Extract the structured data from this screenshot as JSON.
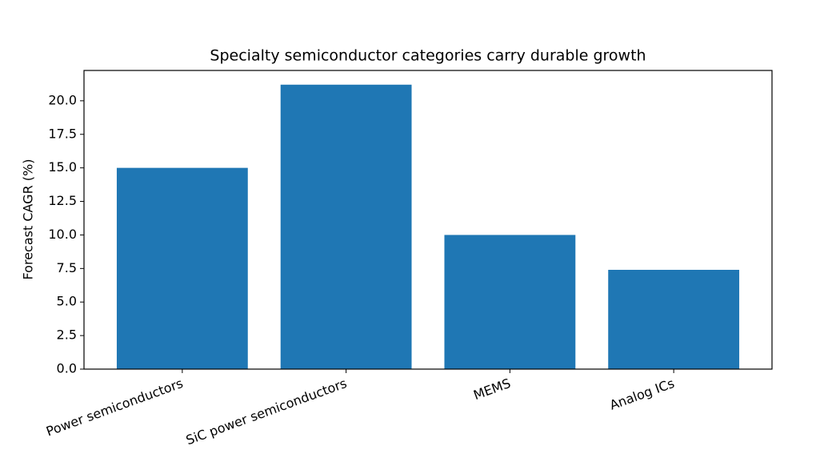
{
  "chart_data": {
    "type": "bar",
    "title": "Specialty semiconductor categories carry durable growth",
    "y_label": "Forecast CAGR (%)",
    "categories": [
      "Power semiconductors",
      "SiC power semiconductors",
      "MEMS",
      "Analog ICs"
    ],
    "values": [
      15,
      21.2,
      10,
      7.4
    ],
    "color": "#1f77b4",
    "ylim": [
      0,
      22.26
    ],
    "yticks": [
      {
        "value": 0,
        "label": "0.0"
      },
      2.5,
      {
        "value": 5,
        "label": "5.0"
      },
      7.5,
      {
        "value": 10,
        "label": "10.0"
      },
      12.5,
      {
        "value": 15,
        "label": "15.0"
      },
      17.5,
      {
        "value": 20,
        "label": "20.0"
      }
    ],
    "grid": false
  }
}
